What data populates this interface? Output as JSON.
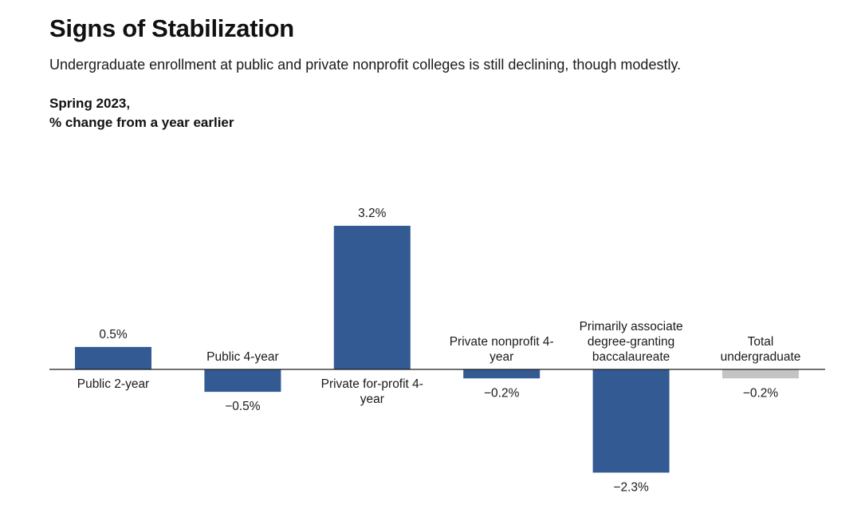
{
  "header": {
    "title": "Signs of Stabilization",
    "subtitle": "Undergraduate enrollment at public and private nonprofit colleges is still declining, though modestly.",
    "series_label_line1": "Spring 2023,",
    "series_label_line2": "% change from a year earlier"
  },
  "chart_data": {
    "type": "bar",
    "title": "Signs of Stabilization",
    "subtitle": "Undergraduate enrollment at public and private nonprofit colleges is still declining, though modestly.",
    "ylabel": "Spring 2023, % change from a year earlier",
    "xlabel": "",
    "ylim": [
      -2.3,
      3.2
    ],
    "grid": false,
    "legend": "none",
    "categories": [
      [
        "Public 2-year"
      ],
      [
        "Public 4-year"
      ],
      [
        "Private for-profit 4-",
        "year"
      ],
      [
        "Private nonprofit 4-",
        "year"
      ],
      [
        "Primarily associate",
        "degree-granting",
        "baccalaureate"
      ],
      [
        "Total",
        "undergraduate"
      ]
    ],
    "values": [
      0.5,
      -0.5,
      3.2,
      -0.2,
      -2.3,
      -0.2
    ],
    "value_labels": [
      "0.5%",
      "−0.5%",
      "3.2%",
      "−0.2%",
      "−2.3%",
      "−0.2%"
    ],
    "colors": [
      "#335a92",
      "#335a92",
      "#335a92",
      "#335a92",
      "#335a92",
      "#c4c4c4"
    ]
  }
}
